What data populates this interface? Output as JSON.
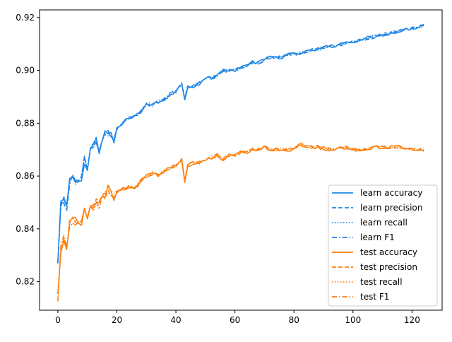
{
  "chart_data": {
    "type": "line",
    "title": "",
    "xlabel": "",
    "ylabel": "",
    "xlim": [
      -6.2,
      130.2
    ],
    "ylim": [
      0.8092,
      0.9229
    ],
    "x_ticks": [
      0,
      20,
      40,
      60,
      80,
      100,
      120
    ],
    "y_ticks": [
      0.82,
      0.84,
      0.86,
      0.88,
      0.9,
      0.92
    ],
    "x_tick_labels": [
      "0",
      "20",
      "40",
      "60",
      "80",
      "100",
      "120"
    ],
    "y_tick_labels": [
      "0.82",
      "0.84",
      "0.86",
      "0.88",
      "0.90",
      "0.92"
    ],
    "grid": false,
    "legend_position": "lower-right",
    "colors": {
      "learn": "#1f86e8",
      "test": "#ff7f0e"
    },
    "x_range": [
      0,
      124
    ],
    "learn_anchor_x": [
      0,
      1,
      2,
      3,
      4,
      5,
      6,
      7,
      8,
      9,
      10,
      11,
      12,
      13,
      14,
      15,
      16,
      17,
      18,
      19,
      20,
      22,
      24,
      26,
      28,
      30,
      32,
      34,
      36,
      38,
      40,
      42,
      43,
      44,
      46,
      48,
      50,
      52,
      54,
      56,
      58,
      60,
      62,
      64,
      66,
      68,
      70,
      72,
      74,
      76,
      78,
      80,
      84,
      88,
      92,
      96,
      100,
      104,
      108,
      112,
      116,
      120,
      124
    ],
    "learn_anchor_y": [
      0.8265,
      0.849,
      0.851,
      0.848,
      0.858,
      0.86,
      0.858,
      0.857,
      0.859,
      0.866,
      0.862,
      0.87,
      0.872,
      0.874,
      0.869,
      0.873,
      0.876,
      0.876,
      0.875,
      0.873,
      0.878,
      0.88,
      0.882,
      0.883,
      0.884,
      0.887,
      0.887,
      0.888,
      0.889,
      0.891,
      0.892,
      0.895,
      0.889,
      0.894,
      0.894,
      0.895,
      0.897,
      0.897,
      0.898,
      0.9,
      0.9,
      0.9,
      0.901,
      0.902,
      0.903,
      0.903,
      0.904,
      0.905,
      0.905,
      0.905,
      0.906,
      0.906,
      0.907,
      0.908,
      0.909,
      0.91,
      0.911,
      0.912,
      0.913,
      0.914,
      0.915,
      0.916,
      0.917
    ],
    "test_anchor_x": [
      0,
      1,
      2,
      3,
      4,
      5,
      6,
      7,
      8,
      9,
      10,
      11,
      12,
      13,
      14,
      15,
      16,
      17,
      18,
      19,
      20,
      22,
      24,
      26,
      28,
      30,
      32,
      34,
      36,
      38,
      40,
      42,
      43,
      44,
      46,
      48,
      50,
      52,
      54,
      56,
      58,
      60,
      62,
      64,
      66,
      68,
      70,
      72,
      76,
      80,
      82,
      84,
      88,
      92,
      96,
      100,
      104,
      108,
      112,
      116,
      120,
      124
    ],
    "test_anchor_y": [
      0.814,
      0.832,
      0.836,
      0.833,
      0.842,
      0.843,
      0.843,
      0.841,
      0.842,
      0.847,
      0.843,
      0.848,
      0.848,
      0.85,
      0.849,
      0.852,
      0.853,
      0.855,
      0.853,
      0.852,
      0.854,
      0.855,
      0.856,
      0.855,
      0.858,
      0.86,
      0.861,
      0.86,
      0.862,
      0.863,
      0.864,
      0.866,
      0.858,
      0.864,
      0.865,
      0.865,
      0.866,
      0.867,
      0.868,
      0.866,
      0.868,
      0.868,
      0.869,
      0.869,
      0.87,
      0.87,
      0.871,
      0.87,
      0.87,
      0.87,
      0.872,
      0.871,
      0.871,
      0.87,
      0.871,
      0.87,
      0.87,
      0.871,
      0.871,
      0.871,
      0.87,
      0.87
    ],
    "series": [
      {
        "name": "learn accuracy",
        "group": "learn",
        "style": "solid"
      },
      {
        "name": "learn precision",
        "group": "learn",
        "style": "dashed"
      },
      {
        "name": "learn recall",
        "group": "learn",
        "style": "dotted"
      },
      {
        "name": "learn F1",
        "group": "learn",
        "style": "dashdot"
      },
      {
        "name": "test accuracy",
        "group": "test",
        "style": "solid"
      },
      {
        "name": "test precision",
        "group": "test",
        "style": "dashed"
      },
      {
        "name": "test recall",
        "group": "test",
        "style": "dotted"
      },
      {
        "name": "test F1",
        "group": "test",
        "style": "dashdot"
      }
    ]
  }
}
